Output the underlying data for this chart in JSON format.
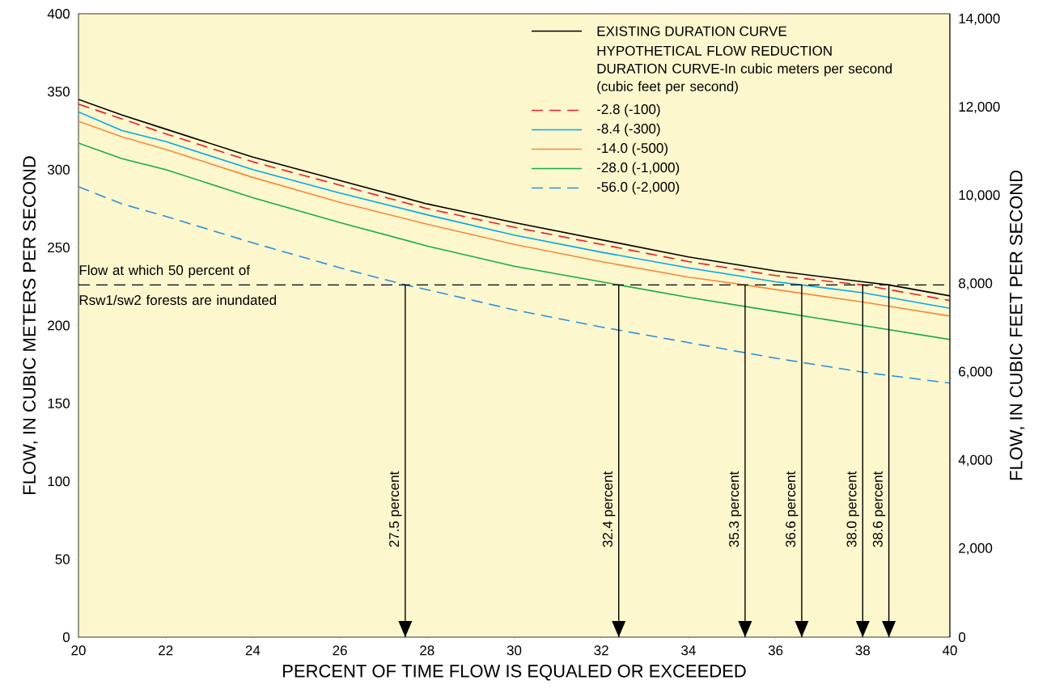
{
  "chart_data": {
    "type": "line",
    "xlabel": "PERCENT OF TIME FLOW IS EQUALED OR EXCEEDED",
    "ylabel": "FLOW, IN CUBIC METERS PER SECOND",
    "y2label": "FLOW, IN CUBIC FEET PER SECOND",
    "legend_title": "HYPOTHETICAL FLOW REDUCTION DURATION CURVE-In cubic meters per second (cubic feet per second)",
    "legend": "top right",
    "xlim": [
      20,
      40
    ],
    "xticks": [
      20,
      22,
      24,
      26,
      28,
      30,
      32,
      34,
      36,
      38,
      40
    ],
    "ylim": [
      0,
      400
    ],
    "yticks": [
      0,
      50,
      100,
      150,
      200,
      250,
      300,
      350,
      400
    ],
    "y2lim": [
      0,
      14126
    ],
    "y2ticks": [
      0,
      {
        "value": 2000,
        "label": "2,000"
      },
      {
        "value": 4000,
        "label": "4,000"
      },
      {
        "value": 6000,
        "label": "6,000"
      },
      {
        "value": 8000,
        "label": "8,000"
      },
      {
        "value": 10000,
        "label": "10,000"
      },
      {
        "value": 12000,
        "label": "12,000"
      },
      {
        "value": 14000,
        "label": "14,000"
      }
    ],
    "series": [
      {
        "name": "EXISTING DURATION CURVE",
        "color": "#000000",
        "line_style": "solid",
        "x": [
          20,
          21,
          22,
          24,
          26,
          28,
          30,
          32,
          34,
          36,
          38,
          38.6,
          40
        ],
        "values": [
          345,
          335,
          326,
          308,
          293,
          278,
          266,
          255,
          244,
          235,
          228,
          226,
          219
        ]
      },
      {
        "name": "-2.8  (-100)",
        "color": "#e8202a",
        "line_style": "dashed",
        "x": [
          20,
          22,
          24,
          26,
          28,
          30,
          32,
          34,
          36,
          38,
          40
        ],
        "values": [
          342,
          323,
          305,
          290,
          275,
          263,
          252,
          241,
          232,
          226,
          216
        ]
      },
      {
        "name": "-8.4  (-300)",
        "color": "#00a9e8",
        "line_style": "solid",
        "x": [
          20,
          21,
          22,
          24,
          26,
          28,
          30,
          32,
          34,
          36,
          36.6,
          38,
          40
        ],
        "values": [
          337,
          325,
          318,
          300,
          285,
          271,
          258,
          247,
          237,
          228,
          226,
          221,
          211
        ]
      },
      {
        "name": "-14.0  (-500)",
        "color": "#f58a3a",
        "line_style": "solid",
        "x": [
          20,
          21,
          22,
          24,
          26,
          28,
          30,
          32,
          34,
          35.3,
          36,
          38,
          40
        ],
        "values": [
          331,
          321,
          313,
          295,
          279,
          265,
          252,
          241,
          231,
          226,
          223,
          215,
          206
        ]
      },
      {
        "name": "-28.0  (-1,000)",
        "color": "#1aab4a",
        "line_style": "solid",
        "x": [
          20,
          21,
          22,
          24,
          26,
          28,
          30,
          32,
          32.4,
          34,
          36,
          38,
          40
        ],
        "values": [
          317,
          307,
          300,
          282,
          266,
          251,
          238,
          228,
          226,
          218,
          209,
          200,
          191
        ]
      },
      {
        "name": "-56.0  (-2,000)",
        "color": "#2a8fd8",
        "line_style": "dashed",
        "x": [
          20,
          21,
          22,
          24,
          26,
          27.5,
          28,
          30,
          32,
          34,
          36,
          38,
          40
        ],
        "values": [
          289,
          278,
          270,
          253,
          237,
          226,
          223,
          210,
          199,
          189,
          179,
          170,
          163
        ]
      }
    ],
    "ref_lines": [
      {
        "axis": "y",
        "value": 226,
        "label": "Flow at which 50 percent of Rsw1/sw2 forests are inundated",
        "color": "#000000",
        "line_style": "dashed"
      },
      {
        "axis": "x",
        "value": 27.5,
        "label": "27.5 percent",
        "color": "#000000",
        "line_style": "solid"
      },
      {
        "axis": "x",
        "value": 32.4,
        "label": "32.4 percent",
        "color": "#000000",
        "line_style": "solid"
      },
      {
        "axis": "x",
        "value": 35.3,
        "label": "35.3 percent",
        "color": "#000000",
        "line_style": "solid"
      },
      {
        "axis": "x",
        "value": 36.6,
        "label": "36.6 percent",
        "color": "#000000",
        "line_style": "solid"
      },
      {
        "axis": "x",
        "value": 38.0,
        "label": "38.0 percent",
        "color": "#000000",
        "line_style": "solid"
      },
      {
        "axis": "x",
        "value": 38.6,
        "label": "38.6 percent",
        "color": "#000000",
        "line_style": "solid"
      }
    ]
  }
}
